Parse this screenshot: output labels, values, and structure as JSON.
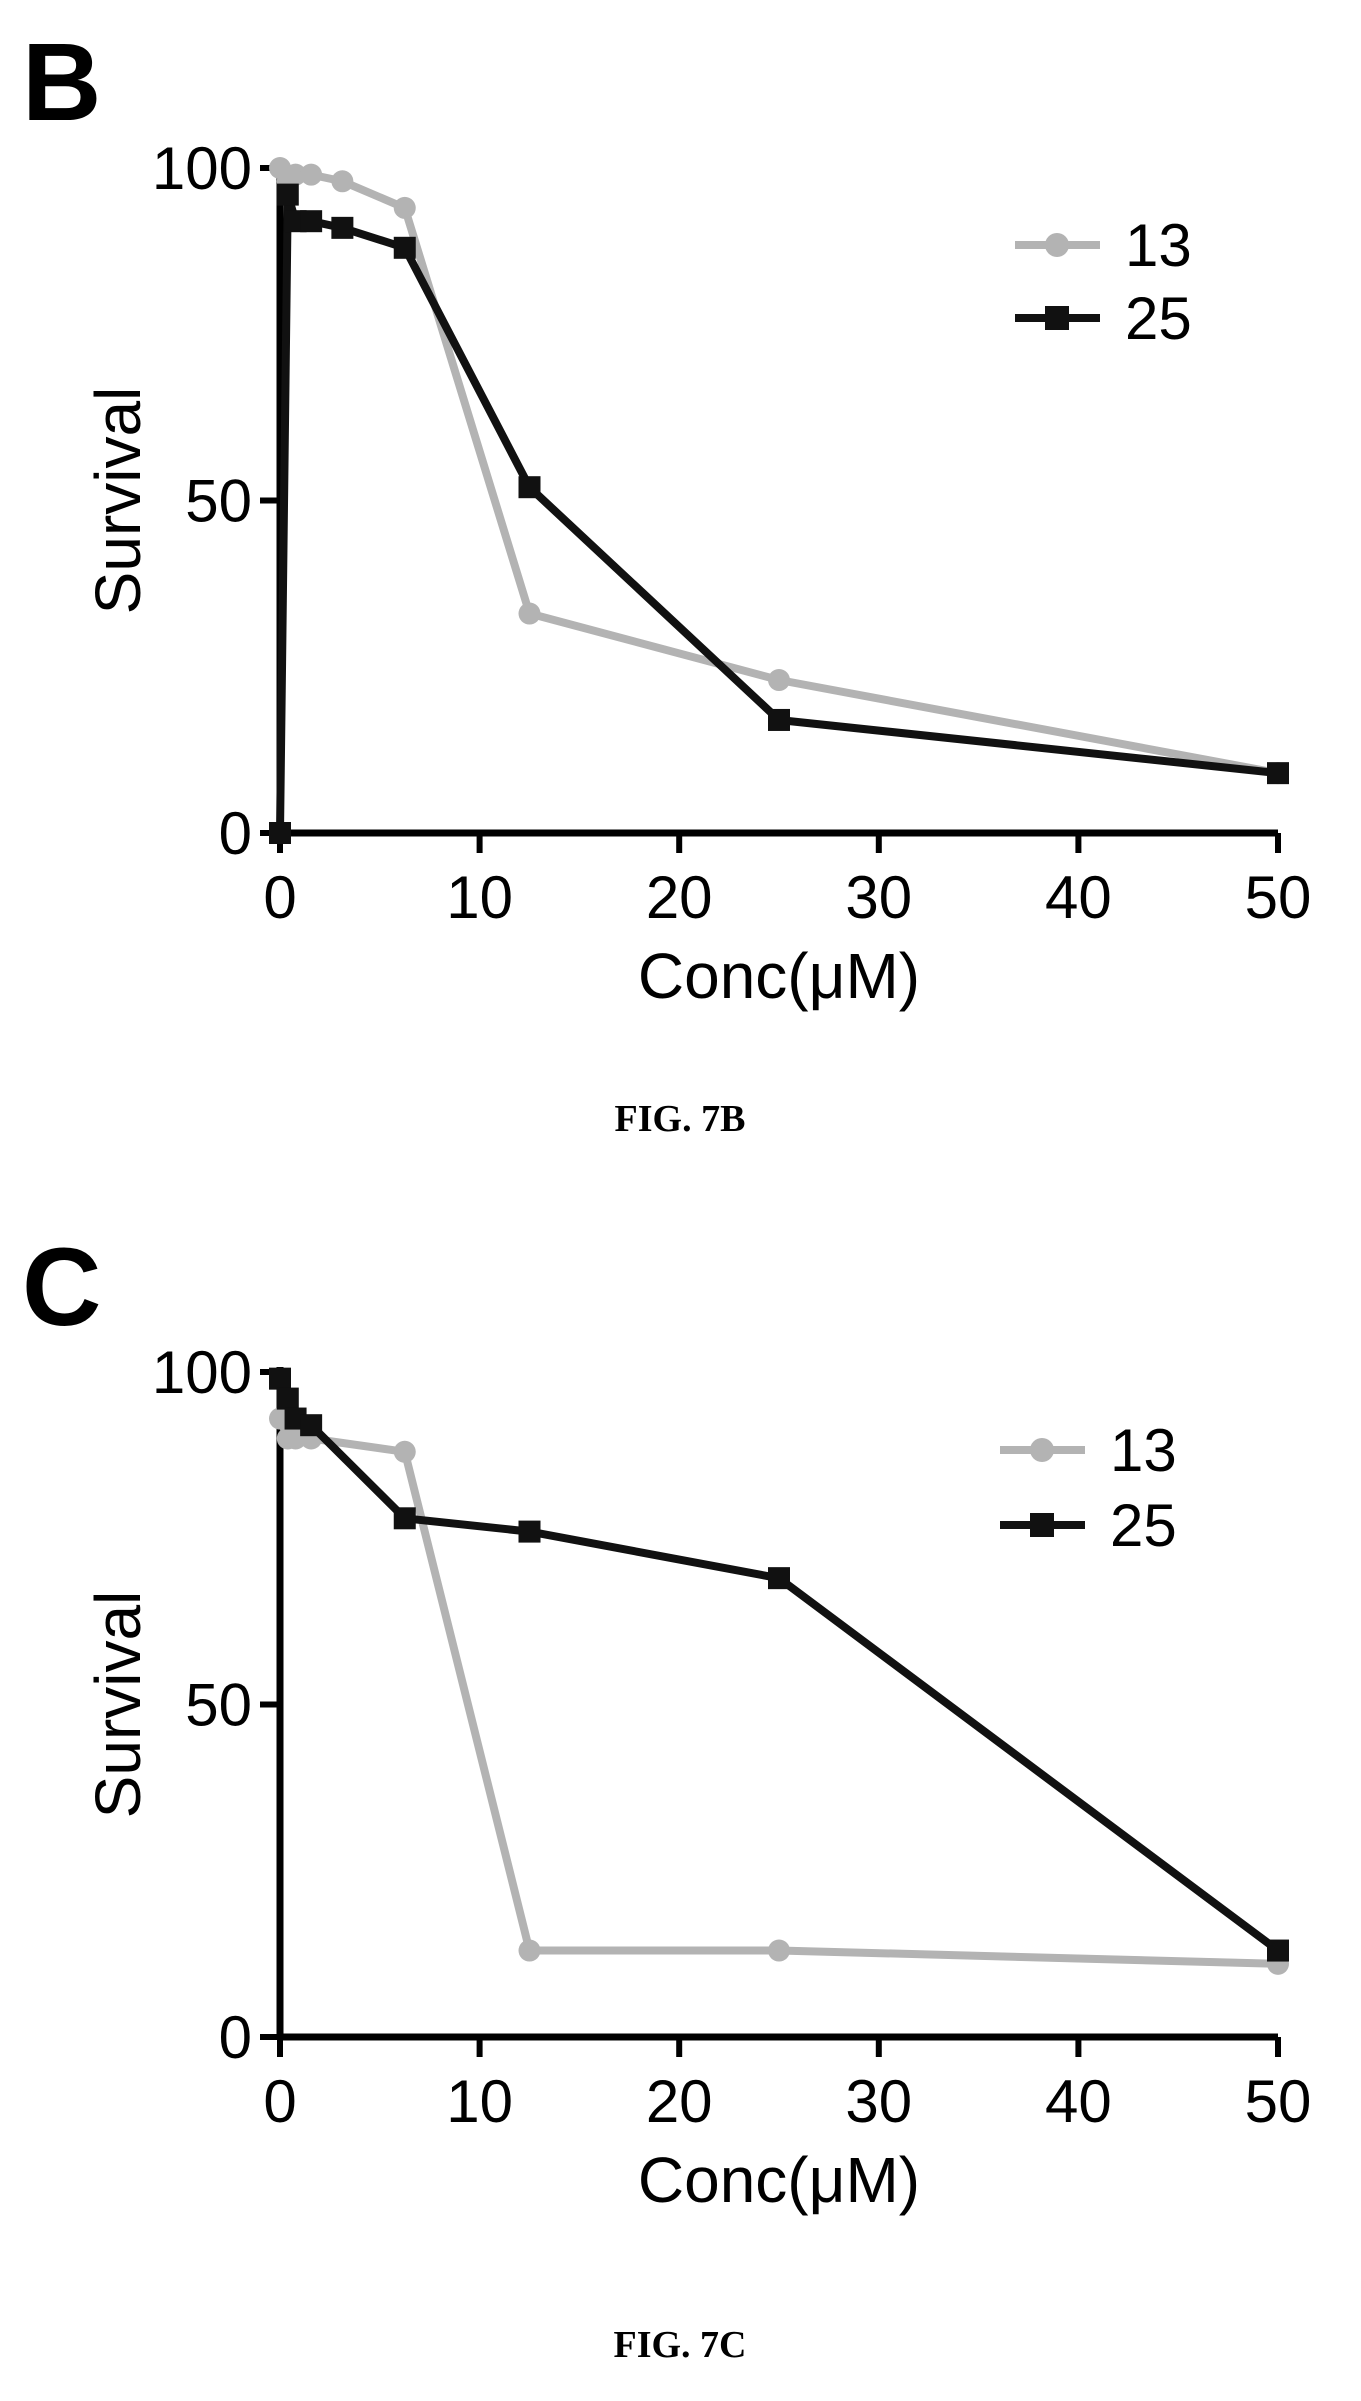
{
  "chart_data": [
    {
      "type": "line",
      "panel_label": "B",
      "caption": "FIG. 7B",
      "xlabel": "Conc(μM)",
      "ylabel": "Survival",
      "xlim": [
        0,
        50
      ],
      "ylim": [
        0,
        100
      ],
      "xticks": [
        0,
        10,
        20,
        30,
        40,
        50
      ],
      "yticks": [
        0,
        50,
        100
      ],
      "legend_position": "top-right",
      "series": [
        {
          "name": "13",
          "color": "#b3b3b3",
          "marker": "circle",
          "x": [
            0,
            0.39,
            0.78,
            1.56,
            3.125,
            6.25,
            12.5,
            25,
            50
          ],
          "y": [
            100,
            98,
            99,
            99,
            98,
            94,
            33,
            23,
            9
          ]
        },
        {
          "name": "25",
          "color": "#111111",
          "marker": "square",
          "x": [
            0,
            0.39,
            0.78,
            1.56,
            3.125,
            6.25,
            12.5,
            25,
            50
          ],
          "y": [
            0,
            96,
            92,
            92,
            91,
            88,
            52,
            17,
            9
          ]
        }
      ]
    },
    {
      "type": "line",
      "panel_label": "C",
      "caption": "FIG. 7C",
      "xlabel": "Conc(μM)",
      "ylabel": "Survival",
      "xlim": [
        0,
        50
      ],
      "ylim": [
        0,
        100
      ],
      "xticks": [
        0,
        10,
        20,
        30,
        40,
        50
      ],
      "yticks": [
        0,
        50,
        100
      ],
      "legend_position": "top-right",
      "series": [
        {
          "name": "13",
          "color": "#b3b3b3",
          "marker": "circle",
          "x": [
            0,
            0.39,
            0.78,
            1.56,
            6.25,
            12.5,
            25,
            50
          ],
          "y": [
            93,
            90,
            90,
            90,
            88,
            13,
            13,
            11
          ]
        },
        {
          "name": "25",
          "color": "#111111",
          "marker": "square",
          "x": [
            0,
            0.39,
            0.78,
            1.56,
            6.25,
            12.5,
            25,
            50
          ],
          "y": [
            99,
            96,
            93,
            92,
            78,
            76,
            69,
            13
          ]
        }
      ]
    }
  ]
}
